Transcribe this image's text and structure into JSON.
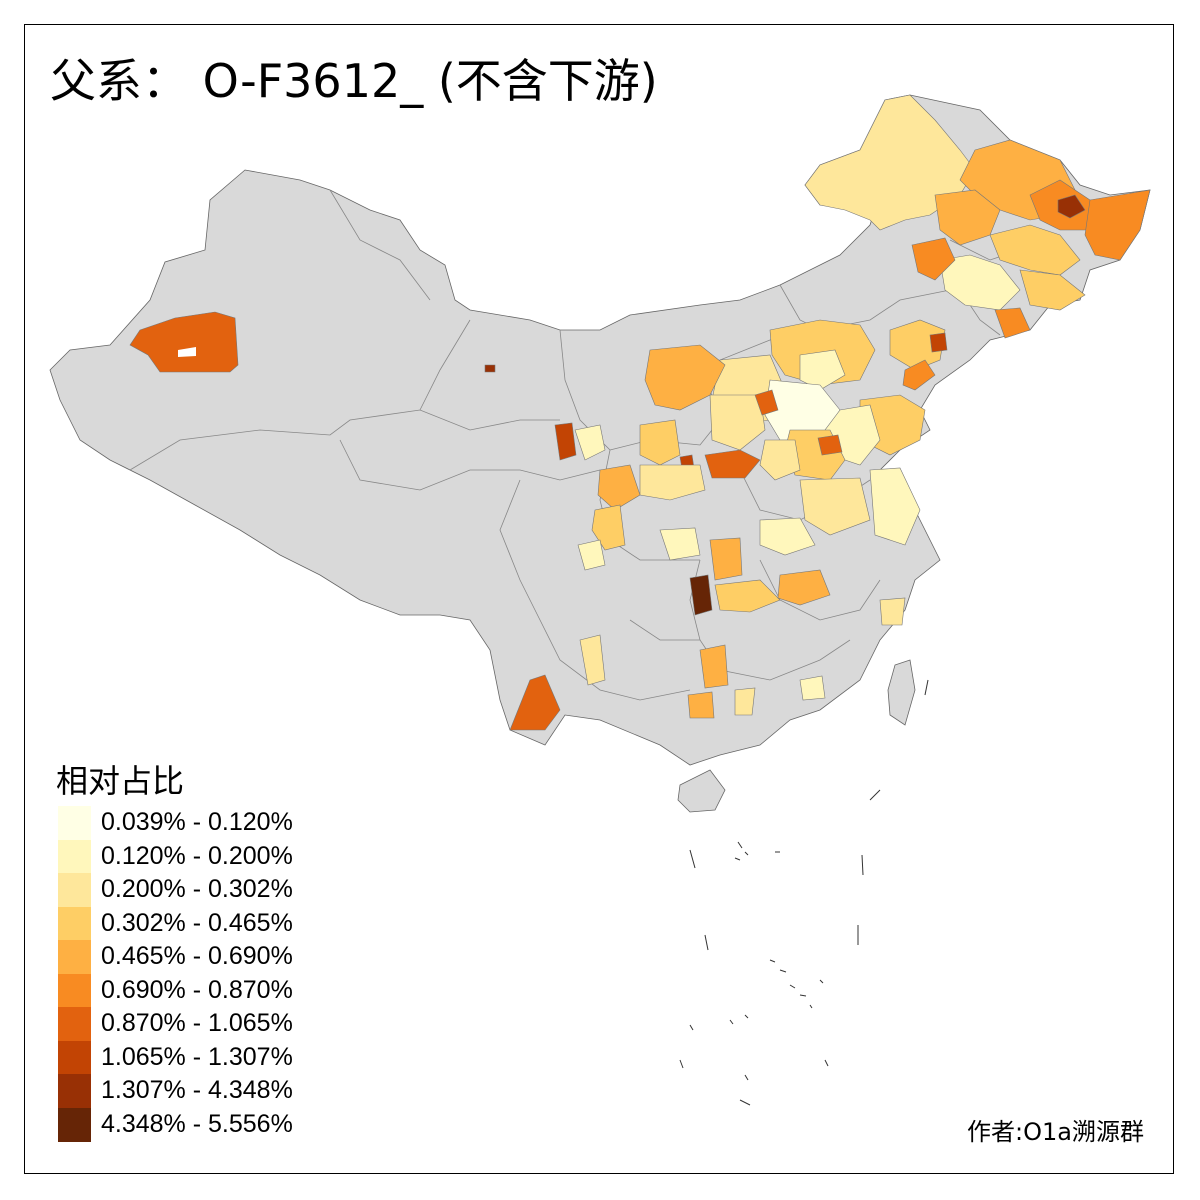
{
  "map": {
    "title": "父系： O-F3612_ (不含下游)",
    "legend_title": "相对占比",
    "author": "作者:O1a溯源群",
    "no_data_color": "#d9d9d9",
    "legend": [
      {
        "range": "0.039% - 0.120%",
        "color": "#ffffe5"
      },
      {
        "range": "0.120% - 0.200%",
        "color": "#fff7bc"
      },
      {
        "range": "0.200% - 0.302%",
        "color": "#fee79b"
      },
      {
        "range": "0.302% - 0.465%",
        "color": "#fece65"
      },
      {
        "range": "0.465% - 0.690%",
        "color": "#feb043"
      },
      {
        "range": "0.690% - 0.870%",
        "color": "#f88b22"
      },
      {
        "range": "0.870% - 1.065%",
        "color": "#e2620f"
      },
      {
        "range": "1.065% - 1.307%",
        "color": "#c24404"
      },
      {
        "range": "1.307% - 4.348%",
        "color": "#983005"
      },
      {
        "range": "4.348% - 5.556%",
        "color": "#662506"
      }
    ]
  }
}
